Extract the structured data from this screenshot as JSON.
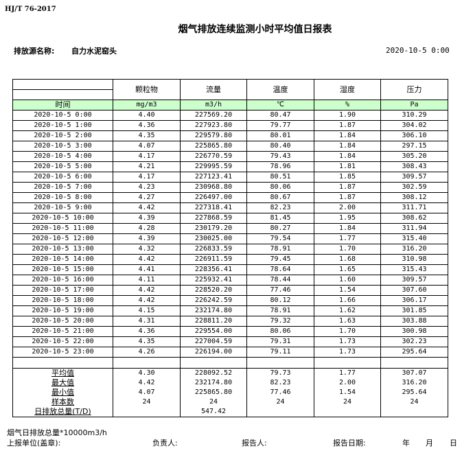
{
  "standard": "HJ/T  76-2017",
  "title": "烟气排放连续监测小时平均值日报表",
  "source_label": "排放源名称:",
  "source_name": "自力水泥窑头",
  "report_datetime": "2020-10-5 0:00",
  "columns": [
    "颗粒物",
    "流量",
    "温度",
    "湿度",
    "压力"
  ],
  "time_header": "时间",
  "units": [
    "mg/m3",
    "m3/h",
    "℃",
    "%",
    "Pa"
  ],
  "rows": [
    [
      "2020-10-5 0:00",
      "4.40",
      "227569.20",
      "80.47",
      "1.90",
      "310.29"
    ],
    [
      "2020-10-5 1:00",
      "4.36",
      "227923.80",
      "79.77",
      "1.87",
      "304.02"
    ],
    [
      "2020-10-5 2:00",
      "4.35",
      "229579.80",
      "80.01",
      "1.84",
      "306.10"
    ],
    [
      "2020-10-5 3:00",
      "4.07",
      "225865.80",
      "80.40",
      "1.84",
      "297.15"
    ],
    [
      "2020-10-5 4:00",
      "4.17",
      "226770.59",
      "79.43",
      "1.84",
      "305.20"
    ],
    [
      "2020-10-5 5:00",
      "4.21",
      "229995.59",
      "78.96",
      "1.81",
      "308.43"
    ],
    [
      "2020-10-5 6:00",
      "4.17",
      "227123.41",
      "80.51",
      "1.85",
      "309.57"
    ],
    [
      "2020-10-5 7:00",
      "4.23",
      "230968.80",
      "80.06",
      "1.87",
      "302.59"
    ],
    [
      "2020-10-5 8:00",
      "4.27",
      "226497.00",
      "80.67",
      "1.87",
      "308.12"
    ],
    [
      "2020-10-5 9:00",
      "4.42",
      "227318.41",
      "82.23",
      "2.00",
      "311.71"
    ],
    [
      "2020-10-5 10:00",
      "4.39",
      "227868.59",
      "81.45",
      "1.95",
      "308.62"
    ],
    [
      "2020-10-5 11:00",
      "4.28",
      "230179.20",
      "80.27",
      "1.84",
      "311.94"
    ],
    [
      "2020-10-5 12:00",
      "4.39",
      "230025.00",
      "79.54",
      "1.77",
      "315.40"
    ],
    [
      "2020-10-5 13:00",
      "4.32",
      "226833.59",
      "78.91",
      "1.70",
      "316.20"
    ],
    [
      "2020-10-5 14:00",
      "4.42",
      "226911.59",
      "79.45",
      "1.68",
      "310.98"
    ],
    [
      "2020-10-5 15:00",
      "4.41",
      "228356.41",
      "78.64",
      "1.65",
      "315.43"
    ],
    [
      "2020-10-5 16:00",
      "4.11",
      "225932.41",
      "78.44",
      "1.60",
      "309.57"
    ],
    [
      "2020-10-5 17:00",
      "4.42",
      "228520.20",
      "77.46",
      "1.54",
      "307.60"
    ],
    [
      "2020-10-5 18:00",
      "4.42",
      "226242.59",
      "80.12",
      "1.66",
      "306.17"
    ],
    [
      "2020-10-5 19:00",
      "4.15",
      "232174.80",
      "78.91",
      "1.62",
      "301.85"
    ],
    [
      "2020-10-5 20:00",
      "4.31",
      "228811.20",
      "79.32",
      "1.63",
      "303.88"
    ],
    [
      "2020-10-5 21:00",
      "4.36",
      "229554.00",
      "80.06",
      "1.70",
      "300.98"
    ],
    [
      "2020-10-5 22:00",
      "4.35",
      "227004.59",
      "79.31",
      "1.73",
      "302.23"
    ],
    [
      "2020-10-5 23:00",
      "4.26",
      "226194.00",
      "79.11",
      "1.73",
      "295.64"
    ]
  ],
  "summary": [
    [
      "平均值",
      "4.30",
      "228092.52",
      "79.73",
      "1.77",
      "307.07"
    ],
    [
      "最大值",
      "4.42",
      "232174.80",
      "82.23",
      "2.00",
      "316.20"
    ],
    [
      "最小值",
      "4.07",
      "225865.80",
      "77.46",
      "1.54",
      "295.64"
    ],
    [
      "样本数",
      "24",
      "24",
      "24",
      "24",
      "24"
    ],
    [
      "日排放总量(T/D)",
      "",
      "547.42",
      "",
      "",
      ""
    ]
  ],
  "footer": {
    "note": "烟气日排放总量*10000m3/h",
    "unit_label": "上报单位(盖章):",
    "responsible_label": "负责人:",
    "reporter_label": "报告人:",
    "report_date_label": "报告日期:",
    "year": "年",
    "month": "月",
    "day": "日"
  },
  "colors": {
    "unit_row_bg": "#ccffcc"
  }
}
